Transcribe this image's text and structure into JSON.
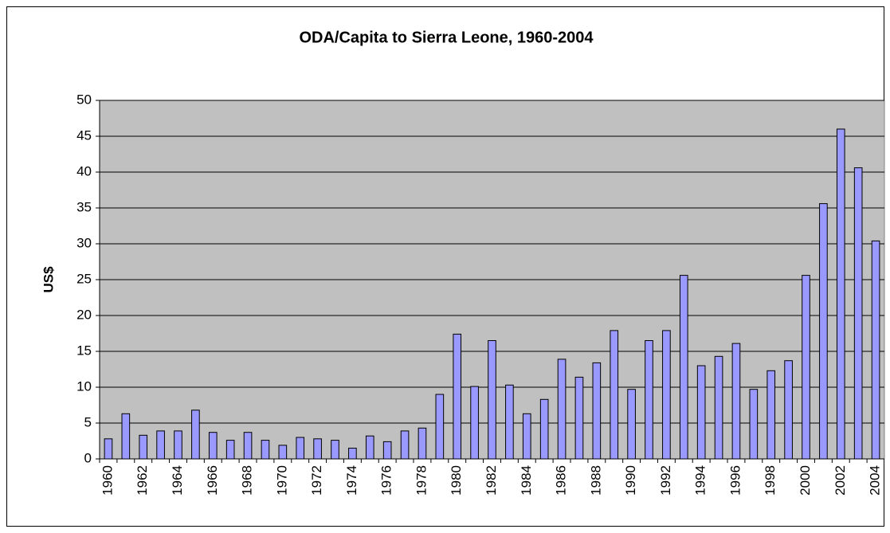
{
  "chart_data": {
    "type": "bar",
    "title": "ODA/Capita to Sierra Leone, 1960-2004",
    "y_label": "US$",
    "categories": [
      "1960",
      null,
      "1962",
      null,
      "1964",
      null,
      "1966",
      null,
      "1968",
      null,
      "1970",
      null,
      "1972",
      null,
      "1974",
      null,
      "1976",
      null,
      "1978",
      null,
      "1980",
      null,
      "1982",
      null,
      "1984",
      null,
      "1986",
      null,
      "1988",
      null,
      "1990",
      null,
      "1992",
      null,
      "1994",
      null,
      "1996",
      null,
      "1998",
      null,
      "2000",
      null,
      "2002",
      null,
      "2004"
    ],
    "values": [
      2.8,
      6.3,
      3.3,
      3.9,
      3.9,
      6.8,
      3.7,
      2.6,
      3.7,
      2.6,
      1.9,
      3.0,
      2.8,
      2.6,
      1.5,
      3.2,
      2.4,
      3.9,
      4.3,
      9.0,
      17.4,
      10.1,
      16.5,
      10.3,
      6.3,
      8.3,
      13.9,
      11.4,
      13.4,
      17.9,
      9.7,
      16.5,
      17.9,
      25.6,
      13.0,
      14.3,
      16.1,
      9.7,
      12.3,
      13.7,
      25.6,
      35.6,
      46.0,
      40.6,
      30.4
    ],
    "color": "#9999ff",
    "plot_background": "#c0c0c0",
    "ylim": [
      0,
      50
    ],
    "yticks": [
      0,
      5,
      10,
      15,
      20,
      25,
      30,
      35,
      40,
      45,
      50
    ],
    "grid": true
  }
}
